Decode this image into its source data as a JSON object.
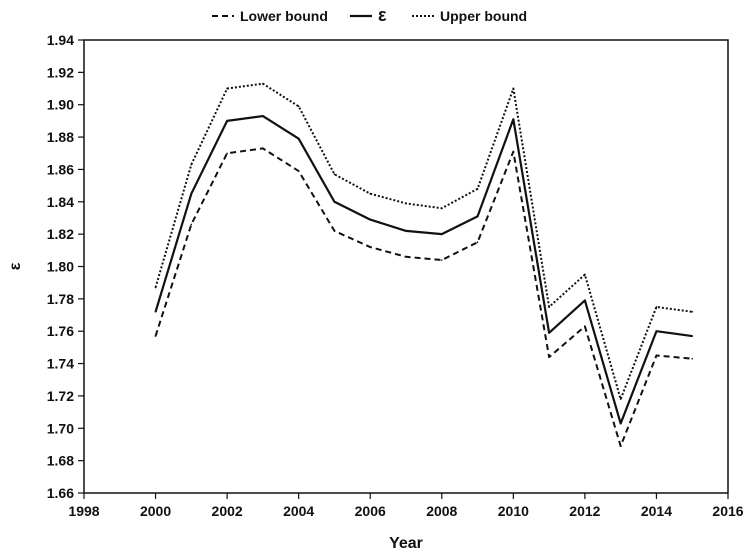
{
  "chart_data": {
    "type": "line",
    "xlabel": "Year",
    "ylabel": "ε",
    "xlim": [
      1998,
      2016
    ],
    "ylim": [
      1.66,
      1.94
    ],
    "xticks": [
      "1998",
      "2000",
      "2002",
      "2004",
      "2006",
      "2008",
      "2010",
      "2012",
      "2014",
      "2016"
    ],
    "yticks": [
      "1.66",
      "1.68",
      "1.70",
      "1.72",
      "1.74",
      "1.76",
      "1.78",
      "1.80",
      "1.82",
      "1.84",
      "1.86",
      "1.88",
      "1.90",
      "1.92",
      "1.94"
    ],
    "legend_position": "top-center",
    "grid": false,
    "x": [
      2000,
      2001,
      2002,
      2003,
      2004,
      2005,
      2006,
      2007,
      2008,
      2009,
      2010,
      2011,
      2012,
      2013,
      2014,
      2015
    ],
    "series": [
      {
        "name": "Lower bound",
        "style": "dashed",
        "values": [
          1.757,
          1.826,
          1.87,
          1.873,
          1.859,
          1.822,
          1.812,
          1.806,
          1.804,
          1.815,
          1.871,
          1.744,
          1.763,
          1.689,
          1.745,
          1.743
        ]
      },
      {
        "name": "ε",
        "style": "solid",
        "values": [
          1.772,
          1.845,
          1.89,
          1.893,
          1.879,
          1.84,
          1.829,
          1.822,
          1.82,
          1.831,
          1.891,
          1.759,
          1.779,
          1.703,
          1.76,
          1.757
        ]
      },
      {
        "name": "Upper bound",
        "style": "dotted",
        "values": [
          1.787,
          1.863,
          1.91,
          1.913,
          1.899,
          1.857,
          1.845,
          1.839,
          1.836,
          1.848,
          1.91,
          1.775,
          1.795,
          1.718,
          1.775,
          1.772
        ]
      }
    ]
  }
}
